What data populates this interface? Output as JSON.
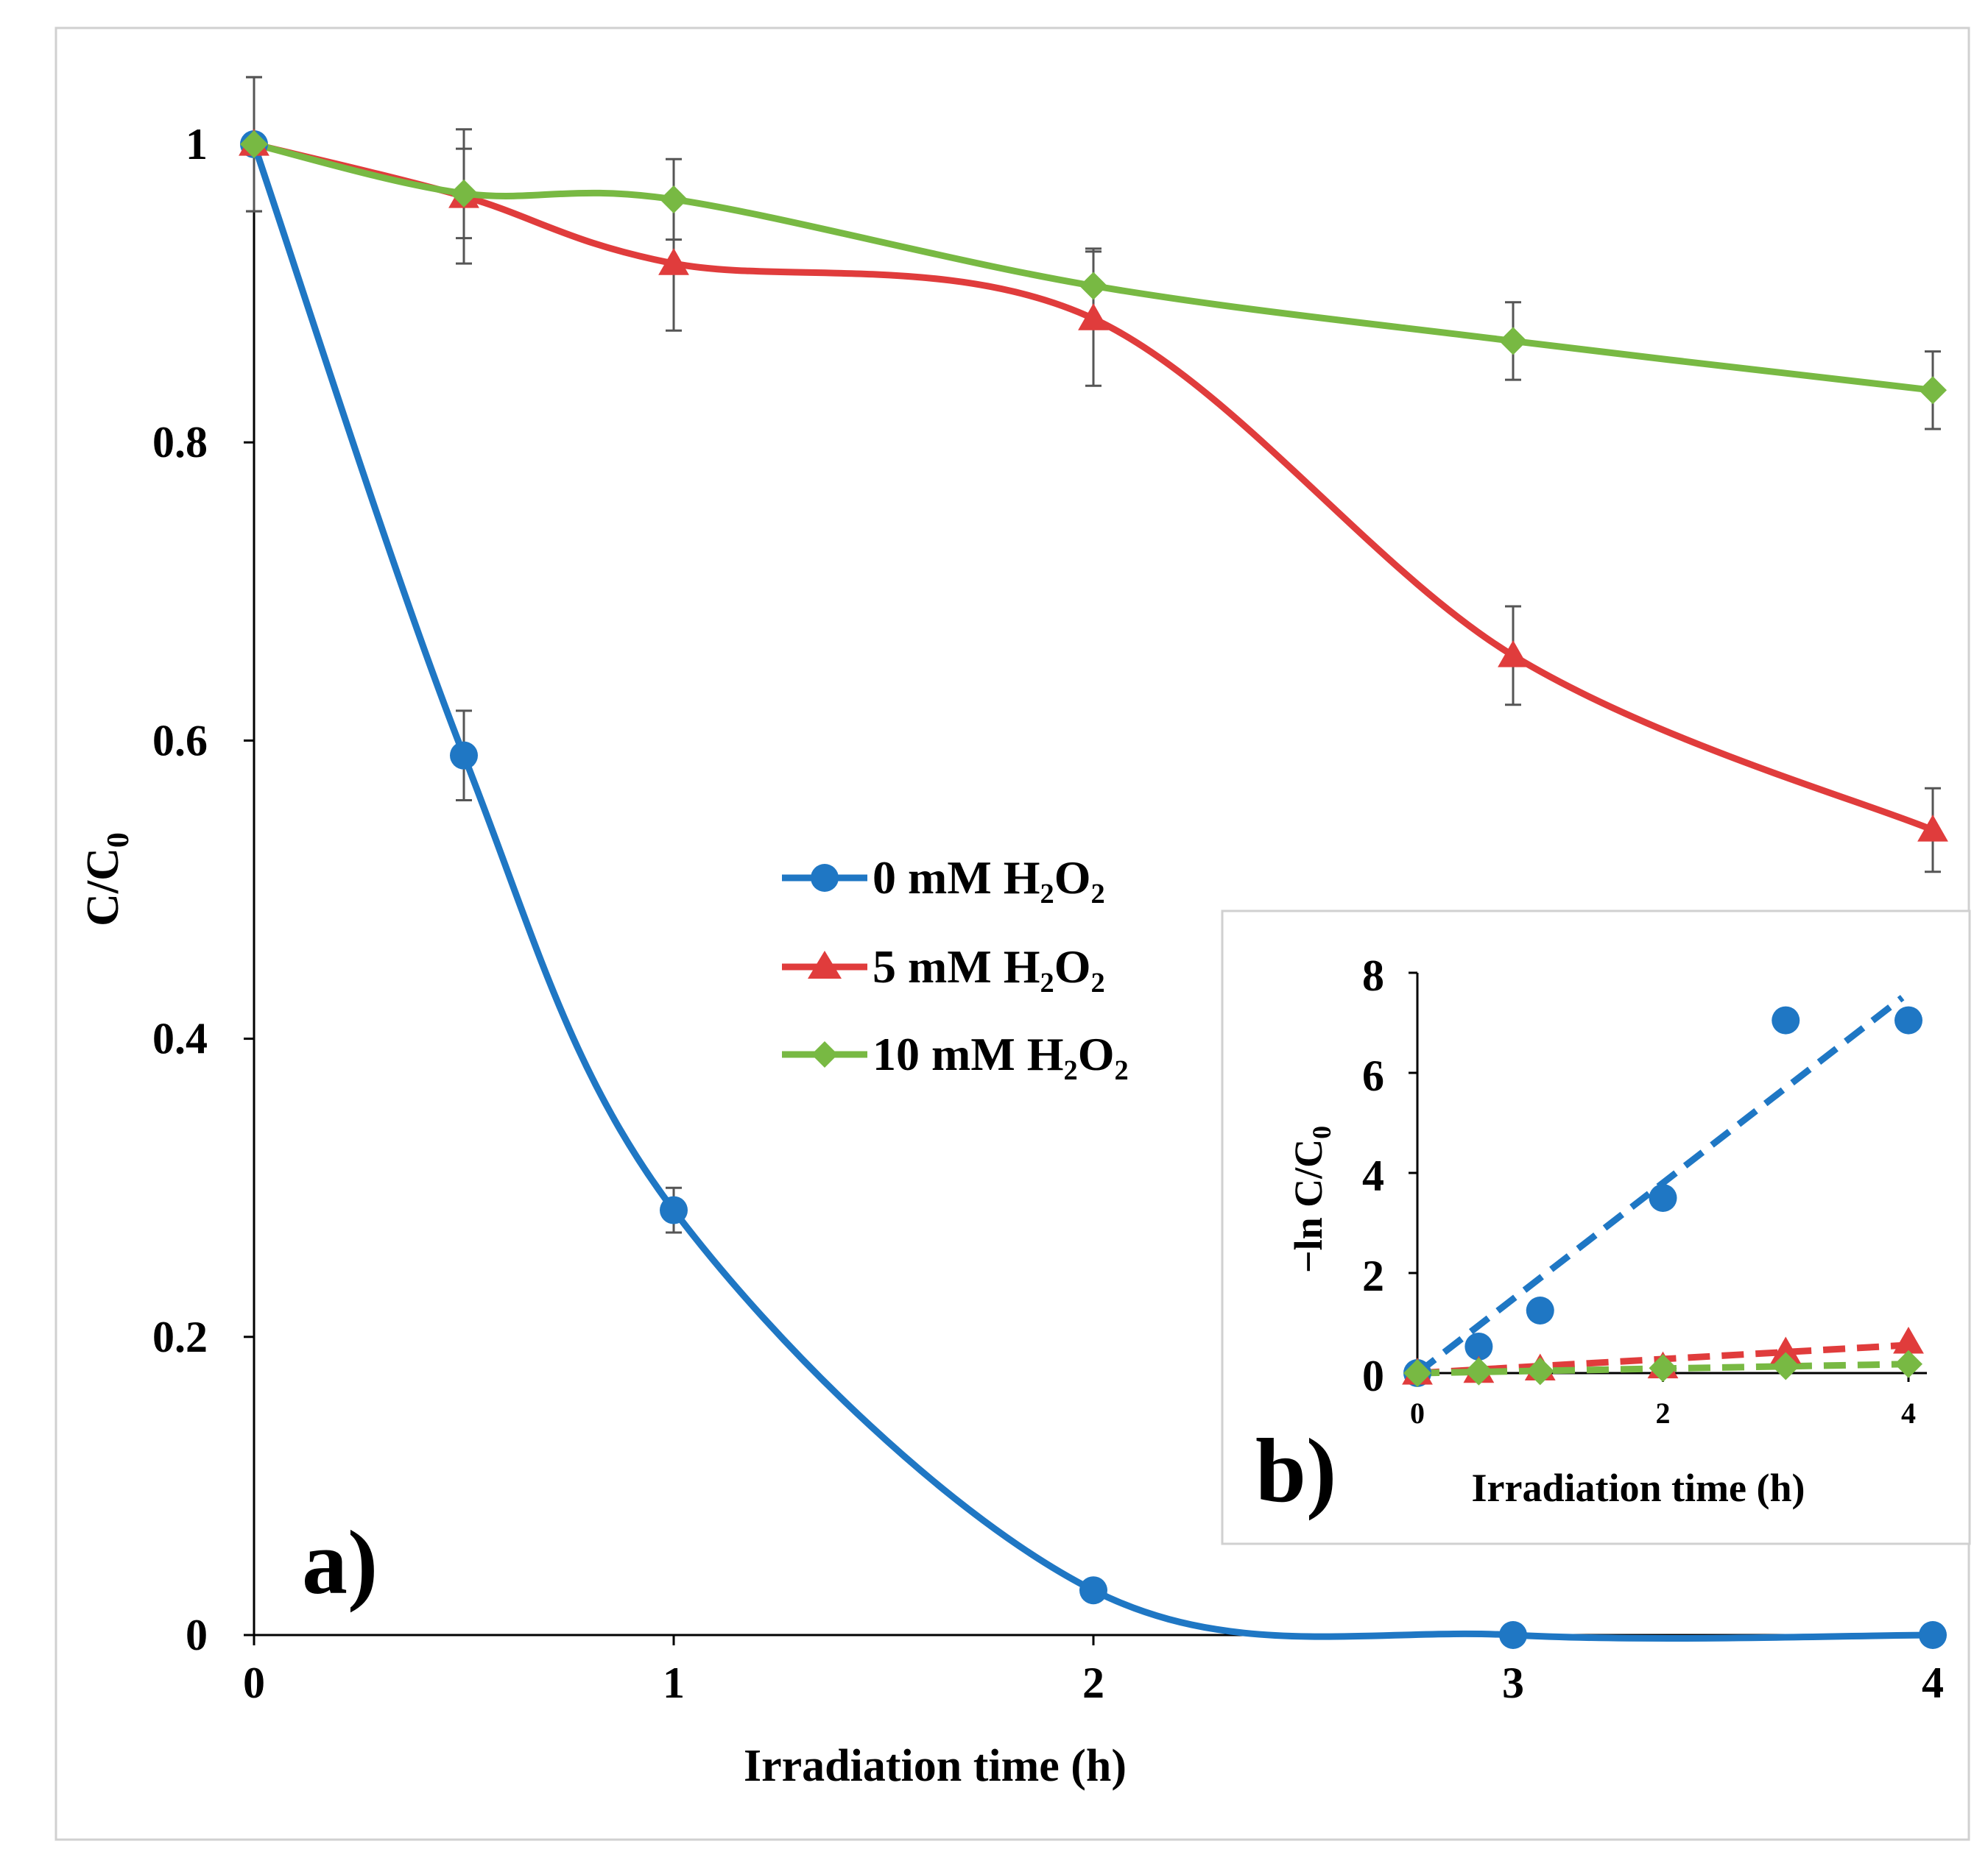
{
  "chart_data": [
    {
      "panel": "a)",
      "type": "line",
      "xlabel": "Irradiation  time (h)",
      "ylabel_main": "C/C",
      "ylabel_sub": "0",
      "xlim": [
        0,
        4
      ],
      "ylim": [
        0,
        1
      ],
      "xticks": [
        "0",
        "1",
        "2",
        "3",
        "4"
      ],
      "yticks": [
        "0",
        "0.2",
        "0.4",
        "0.6",
        "0.8",
        "1"
      ],
      "x": [
        0,
        0.5,
        1,
        2,
        3,
        4
      ],
      "legend_position": "center",
      "series": [
        {
          "name": "0 mM H₂O₂",
          "color": "#1f77c4",
          "marker": "circle",
          "y": [
            1.0,
            0.59,
            0.285,
            0.03,
            0.0,
            0.0
          ],
          "err": [
            0,
            0.03,
            0.015,
            0,
            0,
            0
          ]
        },
        {
          "name": "5 mM H₂O₂",
          "color": "#e03c3c",
          "marker": "triangle",
          "y": [
            1.0,
            0.965,
            0.92,
            0.883,
            0.657,
            0.54
          ],
          "err": [
            0.045,
            0.045,
            0.045,
            0.045,
            0.033,
            0.028
          ]
        },
        {
          "name": "10 mM H₂O₂",
          "color": "#78b943",
          "marker": "diamond",
          "y": [
            1.0,
            0.967,
            0.963,
            0.905,
            0.868,
            0.835
          ],
          "err": [
            0.045,
            0.03,
            0.027,
            0.025,
            0.026,
            0.026
          ]
        }
      ]
    },
    {
      "panel": "b)",
      "type": "scatter",
      "xlabel": "Irradiation time (h)",
      "ylabel_main": "−ln C/C",
      "ylabel_sub": "0",
      "xlim": [
        0,
        4
      ],
      "ylim": [
        0,
        8
      ],
      "xticks": [
        "0",
        "2",
        "4"
      ],
      "yticks": [
        "0",
        "2",
        "4",
        "6",
        "8"
      ],
      "x": [
        0,
        0.5,
        1,
        2,
        3,
        4
      ],
      "series": [
        {
          "color": "#1f77c4",
          "marker": "circle",
          "y": [
            0,
            0.53,
            1.25,
            3.5,
            7.05,
            7.05
          ],
          "fit": [
            0,
            1.9
          ]
        },
        {
          "color": "#e03c3c",
          "marker": "triangle",
          "y": [
            0,
            0.036,
            0.083,
            0.125,
            0.42,
            0.62
          ],
          "fit": [
            0,
            0.14
          ]
        },
        {
          "color": "#78b943",
          "marker": "diamond",
          "y": [
            0,
            0.034,
            0.038,
            0.1,
            0.14,
            0.18
          ],
          "fit": [
            0,
            0.045
          ]
        }
      ]
    }
  ]
}
